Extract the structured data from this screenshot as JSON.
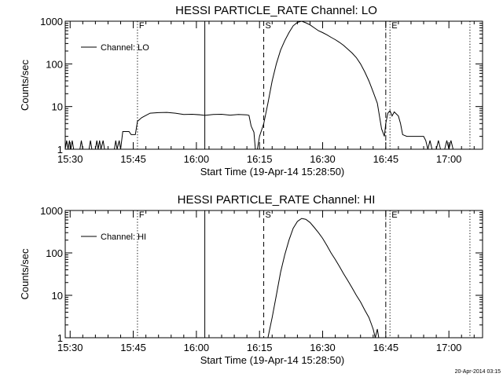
{
  "footer_timestamp": "20-Apr-2014 03:15",
  "chart_data": [
    {
      "type": "line",
      "title": "HESSI PARTICLE_RATE Channel: LO",
      "xlabel": "Start Time (19-Apr-14 15:28:50)",
      "ylabel": "Counts/sec",
      "yscale": "log",
      "ylim": [
        1,
        1000
      ],
      "xlim": [
        "15:28:50",
        "17:08:00"
      ],
      "xticks": [
        "15:30",
        "15:45",
        "16:00",
        "16:15",
        "16:30",
        "16:45",
        "17:00"
      ],
      "yticks": [
        "1",
        "10",
        "100",
        "1000"
      ],
      "grid": false,
      "legend": {
        "position": "top-left",
        "entries": [
          "Channel: LO"
        ]
      },
      "markers": [
        {
          "time": "15:46:00",
          "label": "F",
          "style": "dotted"
        },
        {
          "time": "16:02:00",
          "label": "",
          "style": "solid"
        },
        {
          "time": "16:16:00",
          "label": "S",
          "style": "dashed"
        },
        {
          "time": "16:45:00",
          "label": "",
          "style": "dash-dot"
        },
        {
          "time": "16:46:00",
          "label": "E",
          "style": "dotted"
        },
        {
          "time": "17:05:00",
          "label": "",
          "style": "dotted"
        }
      ],
      "series": [
        {
          "name": "Channel: LO",
          "points": [
            [
              "15:28:50",
              1
            ],
            [
              "15:29:10",
              1.6
            ],
            [
              "15:29:30",
              1
            ],
            [
              "15:29:50",
              1.6
            ],
            [
              "15:30:10",
              1
            ],
            [
              "15:30:30",
              1.6
            ],
            [
              "15:30:50",
              1
            ],
            [
              "15:32:20",
              1
            ],
            [
              "15:32:40",
              1.6
            ],
            [
              "15:33:00",
              1
            ],
            [
              "15:34:30",
              1
            ],
            [
              "15:34:50",
              1.6
            ],
            [
              "15:35:10",
              1
            ],
            [
              "15:36:00",
              1
            ],
            [
              "15:36:20",
              1.6
            ],
            [
              "15:36:40",
              1
            ],
            [
              "15:37:00",
              1.6
            ],
            [
              "15:37:20",
              1
            ],
            [
              "15:37:50",
              1.6
            ],
            [
              "15:38:10",
              1
            ],
            [
              "15:40:30",
              1
            ],
            [
              "15:40:50",
              1.6
            ],
            [
              "15:41:10",
              1
            ],
            [
              "15:41:40",
              1.6
            ],
            [
              "15:42:00",
              1
            ],
            [
              "15:42:30",
              2.6
            ],
            [
              "15:44:00",
              2.6
            ],
            [
              "15:44:30",
              2.2
            ],
            [
              "15:45:30",
              2.2
            ],
            [
              "15:46:00",
              4.5
            ],
            [
              "15:47:00",
              5.5
            ],
            [
              "15:48:00",
              6.2
            ],
            [
              "15:49:00",
              7
            ],
            [
              "15:51:00",
              7.2
            ],
            [
              "15:53:00",
              7.3
            ],
            [
              "15:55:00",
              7
            ],
            [
              "15:57:00",
              6.5
            ],
            [
              "15:59:00",
              6.6
            ],
            [
              "16:01:00",
              6.4
            ],
            [
              "16:02:00",
              6.2
            ],
            [
              "16:04:00",
              6.5
            ],
            [
              "16:06:00",
              6.6
            ],
            [
              "16:08:00",
              6.3
            ],
            [
              "16:10:00",
              6.5
            ],
            [
              "16:12:00",
              6.4
            ],
            [
              "16:12:30",
              6.2
            ],
            [
              "16:13:00",
              3.5
            ],
            [
              "16:13:40",
              2.5
            ],
            [
              "16:14:00",
              1
            ],
            [
              "16:14:30",
              1
            ],
            [
              "16:15:00",
              2
            ],
            [
              "16:16:00",
              4
            ],
            [
              "16:17:00",
              12
            ],
            [
              "16:18:00",
              40
            ],
            [
              "16:19:00",
              100
            ],
            [
              "16:20:00",
              210
            ],
            [
              "16:21:00",
              350
            ],
            [
              "16:22:00",
              540
            ],
            [
              "16:23:00",
              780
            ],
            [
              "16:24:00",
              940
            ],
            [
              "16:25:00",
              1000
            ],
            [
              "16:26:00",
              920
            ],
            [
              "16:27:00",
              820
            ],
            [
              "16:28:00",
              700
            ],
            [
              "16:29:00",
              600
            ],
            [
              "16:30:00",
              540
            ],
            [
              "16:31:00",
              480
            ],
            [
              "16:32:00",
              420
            ],
            [
              "16:33:00",
              370
            ],
            [
              "16:34:00",
              320
            ],
            [
              "16:35:00",
              270
            ],
            [
              "16:36:00",
              220
            ],
            [
              "16:37:00",
              180
            ],
            [
              "16:38:00",
              140
            ],
            [
              "16:39:00",
              100
            ],
            [
              "16:40:00",
              65
            ],
            [
              "16:41:00",
              40
            ],
            [
              "16:42:00",
              22
            ],
            [
              "16:43:00",
              12
            ],
            [
              "16:43:30",
              6
            ],
            [
              "16:44:00",
              3
            ],
            [
              "16:44:40",
              2
            ],
            [
              "16:45:00",
              4
            ],
            [
              "16:45:30",
              7
            ],
            [
              "16:46:00",
              8
            ],
            [
              "16:46:30",
              6
            ],
            [
              "16:47:00",
              7.5
            ],
            [
              "16:48:00",
              6
            ],
            [
              "16:48:30",
              4
            ],
            [
              "16:49:00",
              2.2
            ],
            [
              "16:50:00",
              2
            ],
            [
              "16:52:00",
              2
            ],
            [
              "16:54:00",
              2
            ],
            [
              "16:54:30",
              1.6
            ],
            [
              "16:55:00",
              1
            ],
            [
              "16:55:30",
              1.6
            ],
            [
              "16:56:00",
              1
            ],
            [
              "16:57:00",
              1
            ],
            [
              "16:57:30",
              1.6
            ],
            [
              "16:58:00",
              1
            ],
            [
              "16:59:00",
              1
            ],
            [
              "16:59:30",
              1.6
            ],
            [
              "17:00:00",
              1
            ],
            [
              "17:00:30",
              1.6
            ],
            [
              "17:01:00",
              1
            ],
            [
              "17:04:00",
              1
            ]
          ]
        }
      ]
    },
    {
      "type": "line",
      "title": "HESSI PARTICLE_RATE Channel: HI",
      "xlabel": "Start Time (19-Apr-14 15:28:50)",
      "ylabel": "Counts/sec",
      "yscale": "log",
      "ylim": [
        1,
        1000
      ],
      "xlim": [
        "15:28:50",
        "17:08:00"
      ],
      "xticks": [
        "15:30",
        "15:45",
        "16:00",
        "16:15",
        "16:30",
        "16:45",
        "17:00"
      ],
      "yticks": [
        "1",
        "10",
        "100",
        "1000"
      ],
      "grid": false,
      "legend": {
        "position": "top-left",
        "entries": [
          "Channel: HI"
        ]
      },
      "markers": [
        {
          "time": "15:46:00",
          "label": "F",
          "style": "dotted"
        },
        {
          "time": "16:02:00",
          "label": "",
          "style": "solid"
        },
        {
          "time": "16:16:00",
          "label": "S",
          "style": "dashed"
        },
        {
          "time": "16:45:00",
          "label": "",
          "style": "dash-dot"
        },
        {
          "time": "16:46:00",
          "label": "E",
          "style": "dotted"
        },
        {
          "time": "17:05:00",
          "label": "",
          "style": "dotted"
        }
      ],
      "series": [
        {
          "name": "Channel: HI",
          "points": [
            [
              "16:17:00",
              1
            ],
            [
              "16:18:00",
              3
            ],
            [
              "16:19:00",
              10
            ],
            [
              "16:20:00",
              35
            ],
            [
              "16:21:00",
              90
            ],
            [
              "16:22:00",
              200
            ],
            [
              "16:23:00",
              380
            ],
            [
              "16:24:00",
              550
            ],
            [
              "16:25:00",
              650
            ],
            [
              "16:26:00",
              620
            ],
            [
              "16:27:00",
              520
            ],
            [
              "16:28:00",
              400
            ],
            [
              "16:29:00",
              300
            ],
            [
              "16:30:00",
              220
            ],
            [
              "16:31:00",
              150
            ],
            [
              "16:32:00",
              100
            ],
            [
              "16:33:00",
              70
            ],
            [
              "16:34:00",
              48
            ],
            [
              "16:35:00",
              32
            ],
            [
              "16:36:00",
              22
            ],
            [
              "16:37:00",
              15
            ],
            [
              "16:38:00",
              10
            ],
            [
              "16:39:00",
              7
            ],
            [
              "16:40:00",
              4.5
            ],
            [
              "16:41:00",
              3
            ],
            [
              "16:41:30",
              2.2
            ],
            [
              "16:42:00",
              1.6
            ],
            [
              "16:42:30",
              1
            ],
            [
              "16:43:00",
              1.6
            ],
            [
              "16:43:20",
              1
            ]
          ]
        }
      ]
    }
  ]
}
